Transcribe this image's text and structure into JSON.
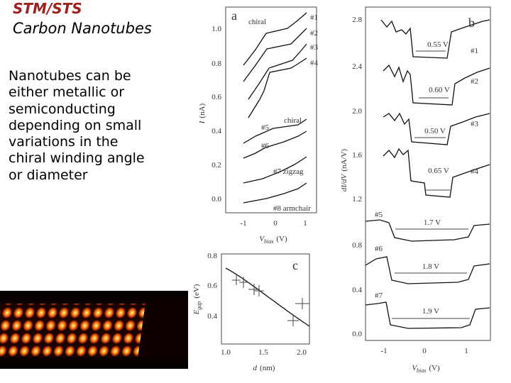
{
  "slide": {
    "title": "STM/STS",
    "subtitle": "Carbon Nanotubes",
    "body_lines": [
      "Nanotubes can be",
      "either metallic or",
      "semiconducting",
      "depending on small",
      "variations in the",
      "chiral winding angle",
      "or diameter"
    ]
  },
  "figure": {
    "panel_a": {
      "letter": "a",
      "y_label": {
        "main": "I",
        "unit": "(nA)"
      },
      "x_label": {
        "main": "V",
        "sub": "bias",
        "unit": "(V)"
      },
      "yticks": [
        "1.0",
        "0.8",
        "0.6",
        "0.4",
        "0.2",
        "0.0"
      ],
      "xticks": [
        "-1",
        "0",
        "1"
      ],
      "annotations": [
        "chiral",
        "#1",
        "#2",
        "#3",
        "#4",
        "#5",
        "chiral",
        "#6",
        "#7 zigzag",
        "#8 armchair"
      ]
    },
    "panel_b": {
      "letter": "b",
      "y_label": {
        "main": "dI/dV",
        "unit": "(nA/V)"
      },
      "x_label": {
        "main": "V",
        "sub": "bias",
        "unit": "(V)"
      },
      "yticks": [
        "2.8",
        "2.4",
        "2.0",
        "1.6",
        "1.2",
        "0.8",
        "0.4",
        "0.0"
      ],
      "xticks": [
        "-1",
        "0",
        "1"
      ],
      "curve_labels": [
        "#1",
        "#2",
        "#3",
        "#4",
        "#5",
        "#6",
        "#7"
      ],
      "gaps": [
        "0.55 V",
        "0.60 V",
        "0.50 V",
        "0.65 V",
        "1.7 V",
        "1.8 V",
        "1.9 V"
      ]
    },
    "panel_c": {
      "letter": "c",
      "y_label": {
        "main": "E",
        "sub": "gap",
        "unit": "(eV)"
      },
      "x_label": {
        "main": "d",
        "unit": "(nm)"
      },
      "yticks": [
        "0.8",
        "0.6",
        "0.4"
      ],
      "xticks": [
        "1.0",
        "1.5",
        "2.0"
      ]
    }
  }
}
